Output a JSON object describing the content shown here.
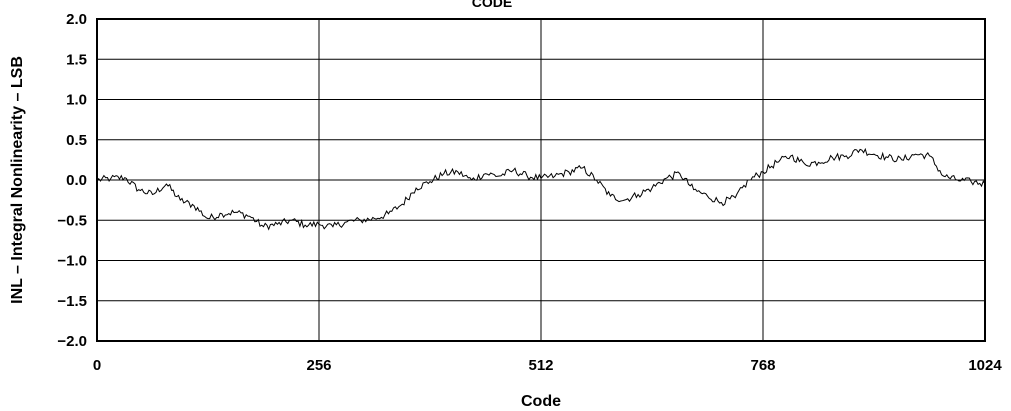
{
  "chart_data": {
    "type": "line",
    "top_text": "CODE",
    "xlabel": "Code",
    "ylabel": "INL – Integral Nonlinearity – LSB",
    "xlim": [
      0,
      1024
    ],
    "ylim": [
      -2.0,
      2.0
    ],
    "x_ticks": [
      "0",
      "256",
      "512",
      "768",
      "1024"
    ],
    "y_ticks": [
      "2.0",
      "1.5",
      "1.0",
      "0.5",
      "0.0",
      "−0.5",
      "−1.0",
      "−1.5",
      "−2.0"
    ],
    "grid": true,
    "series": [
      {
        "color": "#000000",
        "x": [
          0,
          16,
          32,
          48,
          64,
          80,
          96,
          112,
          128,
          144,
          160,
          176,
          192,
          208,
          224,
          240,
          256,
          272,
          288,
          304,
          320,
          336,
          352,
          368,
          384,
          400,
          416,
          432,
          448,
          464,
          480,
          496,
          512,
          528,
          544,
          560,
          576,
          592,
          608,
          624,
          640,
          656,
          672,
          688,
          704,
          720,
          736,
          752,
          768,
          784,
          800,
          816,
          832,
          848,
          864,
          880,
          896,
          912,
          928,
          944,
          960,
          976,
          992,
          1008,
          1024
        ],
        "values": [
          0.0,
          0.02,
          0.03,
          -0.12,
          -0.18,
          -0.05,
          -0.25,
          -0.32,
          -0.48,
          -0.42,
          -0.4,
          -0.45,
          -0.58,
          -0.55,
          -0.5,
          -0.56,
          -0.55,
          -0.58,
          -0.52,
          -0.5,
          -0.48,
          -0.42,
          -0.3,
          -0.1,
          -0.02,
          0.08,
          0.1,
          0.0,
          0.08,
          0.05,
          0.12,
          0.05,
          0.02,
          0.05,
          0.1,
          0.15,
          0.0,
          -0.2,
          -0.25,
          -0.18,
          -0.1,
          0.02,
          0.08,
          -0.12,
          -0.2,
          -0.28,
          -0.22,
          0.0,
          0.1,
          0.22,
          0.3,
          0.2,
          0.22,
          0.28,
          0.3,
          0.38,
          0.32,
          0.28,
          0.25,
          0.32,
          0.3,
          0.05,
          0.0,
          -0.02,
          -0.05
        ]
      }
    ]
  }
}
